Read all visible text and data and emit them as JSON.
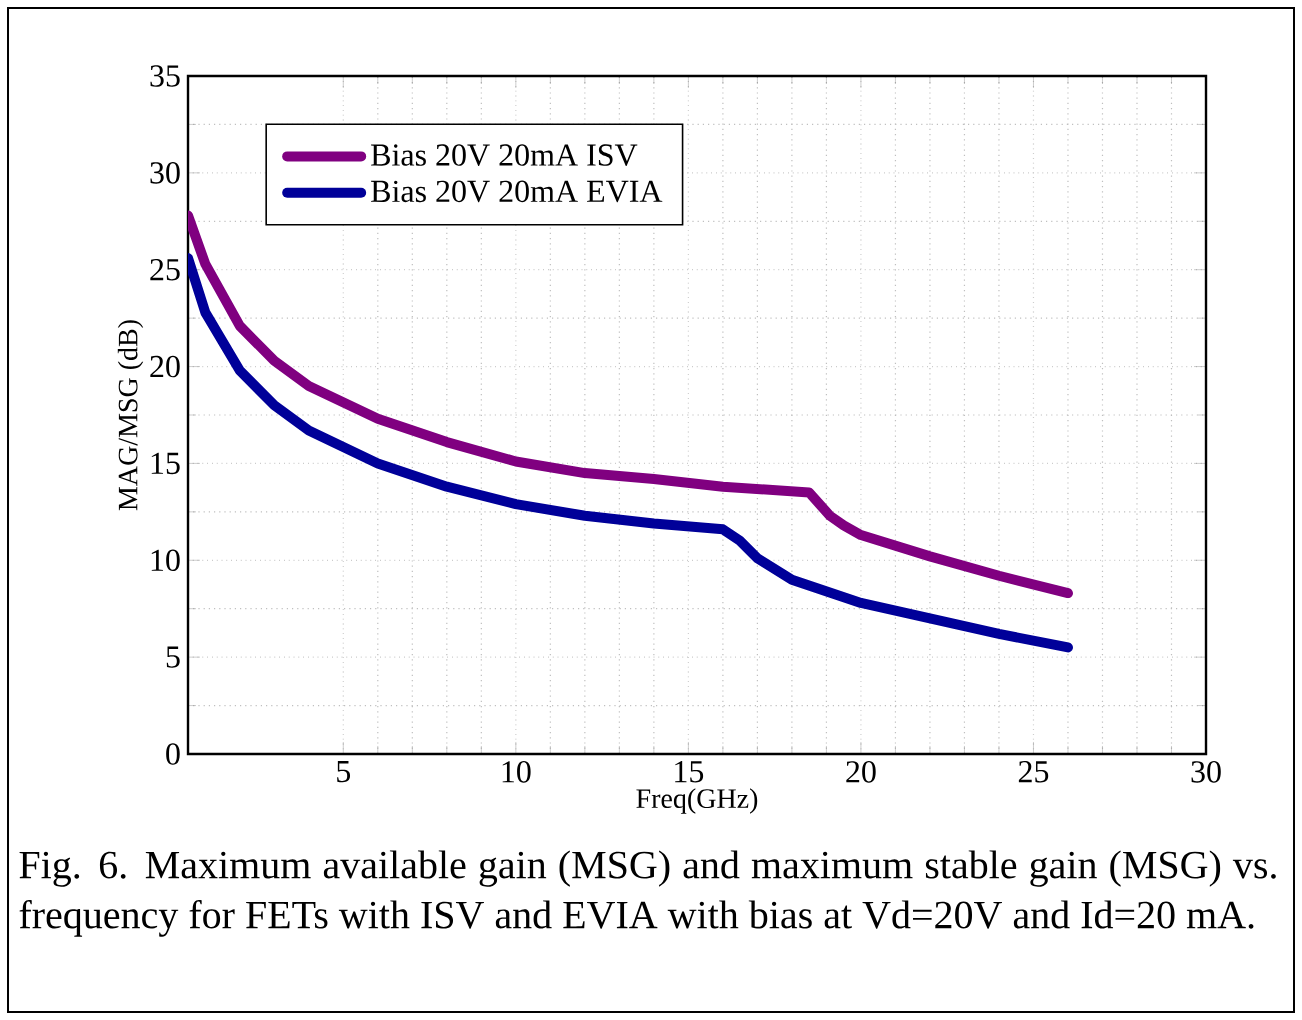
{
  "chart_data": {
    "type": "line",
    "xlabel": "Freq(GHz)",
    "ylabel": "MAG/MSG (dB)",
    "xlim": [
      0.5,
      30
    ],
    "xticks": [
      5,
      10,
      15,
      20,
      25,
      30
    ],
    "ylim": [
      0,
      35
    ],
    "yticks": [
      0,
      5,
      10,
      15,
      20,
      25,
      30,
      35
    ],
    "grid": true,
    "legend": "top left",
    "marker": "none",
    "line_style": "solid",
    "series": [
      {
        "name": "Bias 20V 20mA ISV",
        "color": "#800080",
        "x": [
          0.5,
          1,
          2,
          3,
          4,
          6,
          8,
          10,
          12,
          14,
          16,
          18.5,
          19.1,
          19.5,
          20,
          22,
          24,
          26
        ],
        "values": [
          27.8,
          25.3,
          22.1,
          20.3,
          19,
          17.3,
          16.1,
          15.1,
          14.5,
          14.2,
          13.8,
          13.5,
          12.3,
          11.8,
          11.3,
          10.2,
          9.2,
          8.3
        ]
      },
      {
        "name": "Bias 20V 20mA EVIA",
        "color": "#000099",
        "x": [
          0.5,
          1,
          2,
          3,
          4,
          6,
          8,
          10,
          12,
          14,
          16,
          16.5,
          17,
          18,
          20,
          22,
          24,
          26
        ],
        "values": [
          25.6,
          22.8,
          19.8,
          18,
          16.7,
          15,
          13.8,
          12.9,
          12.3,
          11.9,
          11.6,
          11,
          10.1,
          9,
          7.8,
          7,
          6.2,
          5.5
        ]
      }
    ],
    "annotations": [
      "Fig. 6. Maximum available gain (MSG) and maximum stable gain (MSG) vs. frequency for FETs with ISV and EVIA with bias at Vd=20V and Id=20 mA."
    ]
  }
}
